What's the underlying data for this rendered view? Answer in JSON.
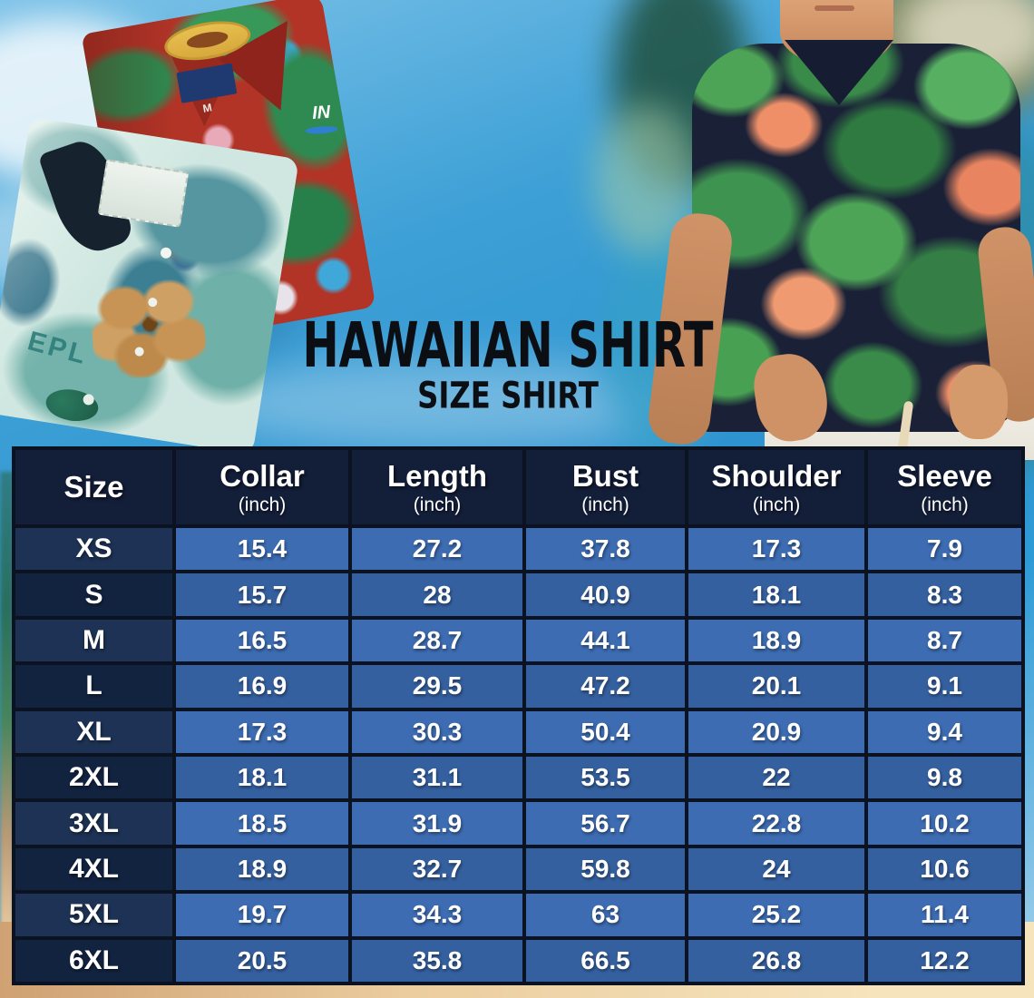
{
  "title": {
    "main": "HAWAIIAN SHIRT",
    "subtitle": "SIZE SHIRT"
  },
  "size_table": {
    "columns": [
      {
        "label": "Size",
        "unit": ""
      },
      {
        "label": "Collar",
        "unit": "(inch)"
      },
      {
        "label": "Length",
        "unit": "(inch)"
      },
      {
        "label": "Bust",
        "unit": "(inch)"
      },
      {
        "label": "Shoulder",
        "unit": "(inch)"
      },
      {
        "label": "Sleeve",
        "unit": "(inch)"
      }
    ],
    "rows": [
      {
        "size": "XS",
        "values": [
          "15.4",
          "27.2",
          "37.8",
          "17.3",
          "7.9"
        ]
      },
      {
        "size": "S",
        "values": [
          "15.7",
          "28",
          "40.9",
          "18.1",
          "8.3"
        ]
      },
      {
        "size": "M",
        "values": [
          "16.5",
          "28.7",
          "44.1",
          "18.9",
          "8.7"
        ]
      },
      {
        "size": "L",
        "values": [
          "16.9",
          "29.5",
          "47.2",
          "20.1",
          "9.1"
        ]
      },
      {
        "size": "XL",
        "values": [
          "17.3",
          "30.3",
          "50.4",
          "20.9",
          "9.4"
        ]
      },
      {
        "size": "2XL",
        "values": [
          "18.1",
          "31.1",
          "53.5",
          "22",
          "9.8"
        ]
      },
      {
        "size": "3XL",
        "values": [
          "18.5",
          "31.9",
          "56.7",
          "22.8",
          "10.2"
        ]
      },
      {
        "size": "4XL",
        "values": [
          "18.9",
          "32.7",
          "59.8",
          "24",
          "10.6"
        ]
      },
      {
        "size": "5XL",
        "values": [
          "19.7",
          "34.3",
          "63",
          "25.2",
          "11.4"
        ]
      },
      {
        "size": "6XL",
        "values": [
          "20.5",
          "35.8",
          "66.5",
          "26.8",
          "12.2"
        ]
      }
    ]
  },
  "photos": {
    "teal_shirt_print_text": "EPL",
    "red_shirt_tag_text": "M",
    "red_shirt_logo_text": "IN"
  },
  "colors": {
    "header_bg": "#131e39",
    "row_light": "#3d6cb2",
    "row_dark": "#35609f",
    "size_col_light": "#1d3254",
    "size_col_dark": "#122340",
    "cell_border": "#0b1322",
    "sky_blue": "#2e93d0",
    "sand": "#ebcd9f",
    "title_text": "#0b0f14"
  }
}
